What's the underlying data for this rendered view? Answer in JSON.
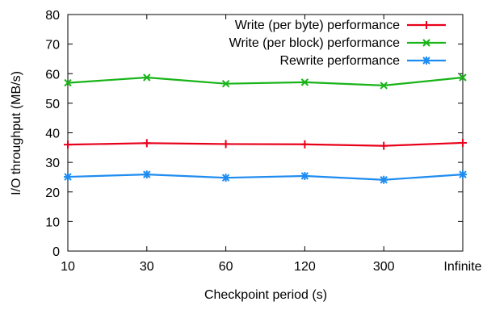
{
  "chart_data": {
    "type": "line",
    "title": "",
    "xlabel": "Checkpoint period (s)",
    "ylabel": "I/O throughput (MB/s)",
    "categories": [
      "10",
      "30",
      "60",
      "120",
      "300",
      "Infinite"
    ],
    "ylim": [
      0,
      80
    ],
    "yticks": [
      0,
      10,
      20,
      30,
      40,
      50,
      60,
      70,
      80
    ],
    "grid": false,
    "legend_position": "top-right",
    "series": [
      {
        "name": "Write (per byte) performance",
        "color": "#e8001a",
        "marker": "plus",
        "values": [
          36.0,
          36.5,
          36.2,
          36.1,
          35.6,
          36.6
        ]
      },
      {
        "name": "Write (per block) performance",
        "color": "#18b418",
        "marker": "x",
        "values": [
          56.9,
          58.7,
          56.6,
          57.1,
          56.0,
          58.7
        ]
      },
      {
        "name": "Rewrite performance",
        "color": "#1e8cf0",
        "marker": "star",
        "values": [
          25.1,
          25.9,
          24.8,
          25.4,
          24.1,
          25.9
        ]
      }
    ]
  }
}
